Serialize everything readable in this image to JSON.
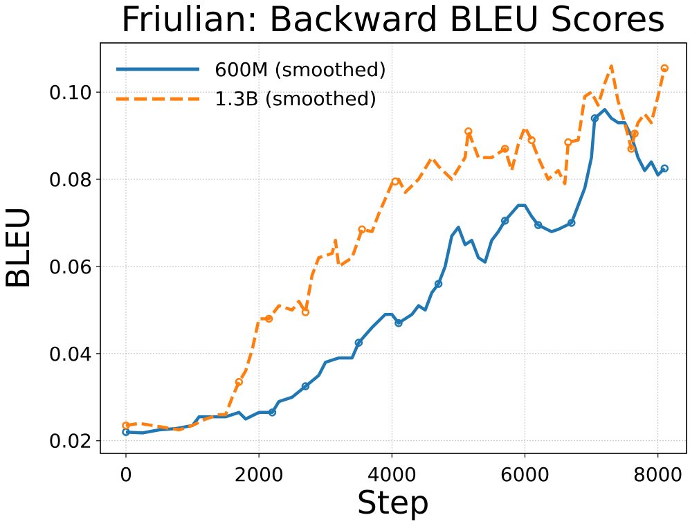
{
  "chart_data": {
    "type": "line",
    "title": "Friulian: Backward BLEU Scores",
    "xlabel": "Step",
    "ylabel": "BLEU",
    "xlim": [
      -385,
      8430
    ],
    "ylim": [
      0.0171,
      0.1113
    ],
    "xticks": [
      0,
      2000,
      4000,
      6000,
      8000
    ],
    "xtick_labels": [
      "0",
      "2000",
      "4000",
      "6000",
      "8000"
    ],
    "yticks": [
      0.02,
      0.04,
      0.06,
      0.08,
      0.1
    ],
    "ytick_labels": [
      "0.02",
      "0.04",
      "0.06",
      "0.08",
      "0.10"
    ],
    "grid": true,
    "legend_position": "top-left",
    "series": [
      {
        "name": "600M (smoothed)",
        "color": "#1f77b4",
        "style": "solid",
        "x": [
          0,
          250,
          500,
          750,
          1000,
          1100,
          1250,
          1500,
          1700,
          1800,
          2000,
          2200,
          2300,
          2500,
          2700,
          2900,
          3000,
          3200,
          3400,
          3500,
          3700,
          3900,
          4000,
          4100,
          4300,
          4400,
          4500,
          4600,
          4700,
          4800,
          4900,
          5000,
          5100,
          5200,
          5300,
          5400,
          5500,
          5600,
          5700,
          5900,
          6000,
          6100,
          6200,
          6400,
          6500,
          6700,
          6800,
          6900,
          7000,
          7050,
          7200,
          7300,
          7400,
          7500,
          7600,
          7700,
          7800,
          7900,
          8000,
          8100
        ],
        "y": [
          0.022,
          0.0218,
          0.0225,
          0.0228,
          0.0235,
          0.0255,
          0.0255,
          0.0255,
          0.0265,
          0.025,
          0.0265,
          0.0265,
          0.029,
          0.03,
          0.0325,
          0.035,
          0.038,
          0.039,
          0.039,
          0.0425,
          0.046,
          0.049,
          0.049,
          0.047,
          0.049,
          0.051,
          0.05,
          0.054,
          0.056,
          0.06,
          0.067,
          0.069,
          0.065,
          0.066,
          0.062,
          0.061,
          0.066,
          0.068,
          0.0705,
          0.074,
          0.074,
          0.0715,
          0.0695,
          0.068,
          0.0685,
          0.07,
          0.074,
          0.078,
          0.085,
          0.094,
          0.096,
          0.094,
          0.093,
          0.093,
          0.09,
          0.085,
          0.082,
          0.084,
          0.081,
          0.0825
        ],
        "markers_x": [
          0,
          2200,
          2700,
          3500,
          4100,
          4700,
          5700,
          6200,
          6700,
          7050,
          8100
        ]
      },
      {
        "name": "1.3B (smoothed)",
        "color": "#ff7f0e",
        "style": "dashed",
        "x": [
          0,
          200,
          400,
          600,
          800,
          1000,
          1200,
          1400,
          1500,
          1600,
          1700,
          1800,
          1900,
          2000,
          2150,
          2300,
          2500,
          2600,
          2700,
          2800,
          2900,
          3100,
          3150,
          3200,
          3400,
          3550,
          3700,
          3800,
          4000,
          4100,
          4200,
          4400,
          4600,
          4700,
          4900,
          5100,
          5150,
          5300,
          5500,
          5700,
          5800,
          5900,
          6000,
          6100,
          6200,
          6350,
          6500,
          6600,
          6650,
          6800,
          6900,
          7000,
          7100,
          7200,
          7300,
          7400,
          7500,
          7600,
          7650,
          7700,
          7800,
          7900,
          8000,
          8100
        ],
        "y": [
          0.0235,
          0.024,
          0.0235,
          0.023,
          0.0225,
          0.0235,
          0.025,
          0.026,
          0.026,
          0.03,
          0.0335,
          0.036,
          0.041,
          0.048,
          0.048,
          0.051,
          0.05,
          0.052,
          0.0495,
          0.058,
          0.062,
          0.063,
          0.066,
          0.06,
          0.062,
          0.0685,
          0.068,
          0.072,
          0.079,
          0.08,
          0.077,
          0.08,
          0.085,
          0.083,
          0.08,
          0.085,
          0.091,
          0.085,
          0.085,
          0.087,
          0.082,
          0.088,
          0.092,
          0.089,
          0.085,
          0.08,
          0.082,
          0.079,
          0.0885,
          0.089,
          0.099,
          0.1,
          0.097,
          0.102,
          0.106,
          0.098,
          0.093,
          0.087,
          0.0905,
          0.093,
          0.095,
          0.093,
          0.099,
          0.1055
        ],
        "markers_x": [
          0,
          1700,
          2150,
          2700,
          3550,
          4050,
          5150,
          5700,
          6100,
          6650,
          7600,
          7650,
          8100
        ]
      }
    ]
  }
}
